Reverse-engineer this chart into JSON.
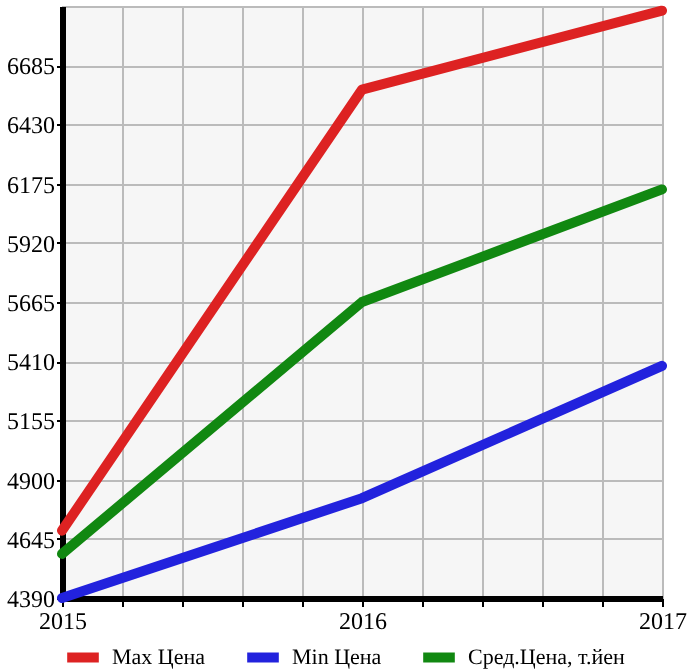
{
  "chart_data": {
    "type": "line",
    "x": [
      2015,
      2016,
      2017
    ],
    "series": [
      {
        "name": "Max Цена",
        "color": "#dd2222",
        "values": [
          4680,
          6580,
          6920
        ]
      },
      {
        "name": "Min Цена",
        "color": "#2222dd",
        "values": [
          4390,
          4820,
          5390
        ]
      },
      {
        "name": "Сред.Цена, т.йен",
        "color": "#118811",
        "values": [
          4580,
          5665,
          6150
        ]
      }
    ],
    "xlim": [
      2015,
      2017
    ],
    "xticks": [
      2015,
      {
        "value": 2015.2,
        "label": null
      },
      {
        "value": 2015.4,
        "label": null
      },
      {
        "value": 2015.6,
        "label": null
      },
      {
        "value": 2015.8,
        "label": null
      },
      2016,
      {
        "value": 2016.2,
        "label": null
      },
      {
        "value": 2016.4,
        "label": null
      },
      {
        "value": 2016.6,
        "label": null
      },
      {
        "value": 2016.8,
        "label": null
      },
      2017
    ],
    "ylim": [
      4390,
      6940
    ],
    "yticks": [
      4390,
      4645,
      4900,
      5155,
      5410,
      5665,
      5920,
      6175,
      6430,
      6685
    ],
    "grid": true,
    "legend": "bottom",
    "marker": "none",
    "line_style": "solid"
  }
}
